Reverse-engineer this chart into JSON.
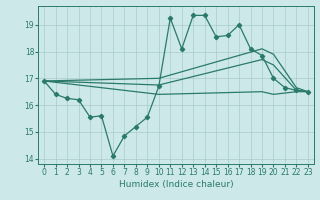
{
  "xlabel": "Humidex (Indice chaleur)",
  "background_color": "#cde8e8",
  "grid_color": "#aacccc",
  "line_color": "#2a7a6a",
  "xlim": [
    -0.5,
    23.5
  ],
  "ylim": [
    13.8,
    19.7
  ],
  "yticks": [
    14,
    15,
    16,
    17,
    18,
    19
  ],
  "xticks": [
    0,
    1,
    2,
    3,
    4,
    5,
    6,
    7,
    8,
    9,
    10,
    11,
    12,
    13,
    14,
    15,
    16,
    17,
    18,
    19,
    20,
    21,
    22,
    23
  ],
  "main_x": [
    0,
    1,
    2,
    3,
    4,
    5,
    6,
    7,
    8,
    9,
    10,
    11,
    12,
    13,
    14,
    15,
    16,
    17,
    18,
    19,
    20,
    21,
    22,
    23
  ],
  "main_y": [
    16.9,
    16.4,
    16.25,
    16.2,
    15.55,
    15.6,
    14.1,
    14.85,
    15.2,
    15.55,
    16.7,
    19.25,
    18.1,
    19.35,
    19.35,
    18.55,
    18.6,
    19.0,
    18.1,
    17.85,
    17.0,
    16.65,
    16.55,
    16.5
  ],
  "upper_x": [
    0,
    10,
    19,
    20,
    22,
    23
  ],
  "upper_y": [
    16.9,
    17.0,
    18.1,
    17.9,
    16.65,
    16.5
  ],
  "mid_x": [
    0,
    10,
    19,
    20,
    22,
    23
  ],
  "mid_y": [
    16.9,
    16.75,
    17.7,
    17.5,
    16.55,
    16.5
  ],
  "lower_x": [
    0,
    10,
    19,
    20,
    22,
    23
  ],
  "lower_y": [
    16.9,
    16.4,
    16.5,
    16.4,
    16.5,
    16.5
  ]
}
